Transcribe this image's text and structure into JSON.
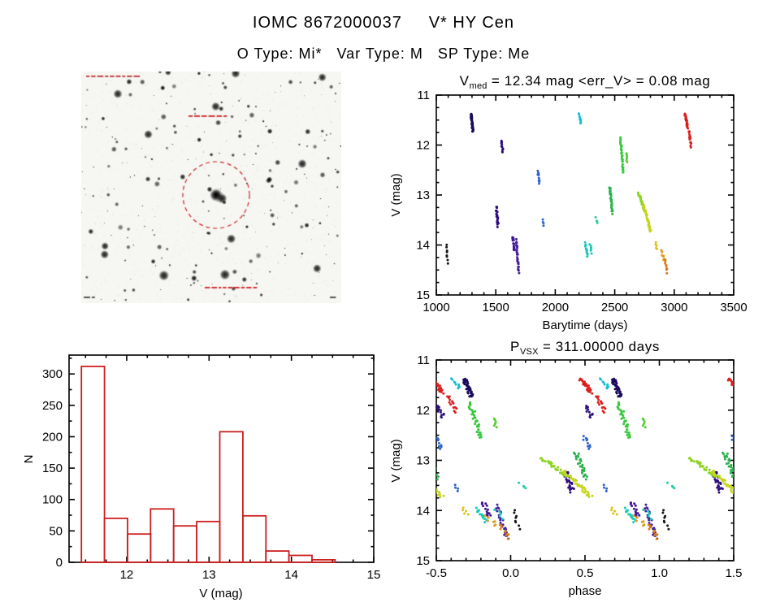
{
  "page": {
    "title": "IOMC 8672000037     V* HY Cen",
    "subtitle": "O Type: Mi*   Var Type: M   SP Type: Me"
  },
  "target": {
    "iomc_id": "8672000037",
    "star_name": "V* HY Cen",
    "otype": "Mi*",
    "var_type": "M",
    "sp_type": "Me",
    "v_med_mag": 12.34,
    "err_v_mag": 0.08,
    "period_days": 311.0
  },
  "finder_chart": {
    "kind": "star-field-image",
    "target_marker": "dashed-circle",
    "target_marker_color": "#cc2222"
  },
  "chart_data": [
    {
      "id": "lightcurve",
      "type": "scatter",
      "title_parts": [
        {
          "t": "V"
        },
        {
          "t": "med",
          "sub": true
        },
        {
          "t": " = 12.34 mag <err_V> = 0.08 mag"
        }
      ],
      "xlabel": "Barytime (days)",
      "ylabel": "V (mag)",
      "xlim": [
        1000,
        3500
      ],
      "ylim": [
        15,
        11
      ],
      "xticks": [
        1000,
        1500,
        2000,
        2500,
        3000,
        3500
      ],
      "xtick_labels": [
        "1000",
        "1500",
        "2000",
        "2500",
        "3000",
        "3500"
      ],
      "yticks": [
        11,
        12,
        13,
        14,
        15
      ],
      "ytick_labels": [
        "11",
        "12",
        "13",
        "14",
        "15"
      ],
      "x_minor": 100,
      "y_minor": 0.25,
      "y_axis_inverted": true,
      "clusters_format": [
        "t_start_days",
        "t_end_days",
        "v_start_mag",
        "v_end_mag",
        "n_points",
        "color"
      ],
      "clusters": [
        [
          1085,
          1095,
          14.02,
          14.35,
          8,
          "#151515"
        ],
        [
          1293,
          1307,
          11.38,
          11.72,
          42,
          "#1b0b5e"
        ],
        [
          1505,
          1518,
          13.25,
          13.62,
          26,
          "#2e0d80"
        ],
        [
          1548,
          1560,
          11.92,
          12.15,
          12,
          "#2e0d80"
        ],
        [
          1642,
          1655,
          13.82,
          14.12,
          14,
          "#3f1699"
        ],
        [
          1672,
          1692,
          13.9,
          14.55,
          30,
          "#45219e"
        ],
        [
          1852,
          1868,
          12.5,
          12.78,
          10,
          "#2f64cc"
        ],
        [
          1893,
          1905,
          13.5,
          13.62,
          4,
          "#2f64cc"
        ],
        [
          2203,
          2215,
          11.38,
          11.56,
          10,
          "#17bfd4"
        ],
        [
          2252,
          2270,
          13.96,
          14.22,
          14,
          "#16c9b8"
        ],
        [
          2293,
          2306,
          14.0,
          14.16,
          6,
          "#16c9b8"
        ],
        [
          2344,
          2356,
          13.46,
          13.58,
          4,
          "#1ecfa0"
        ],
        [
          2460,
          2480,
          12.86,
          13.36,
          30,
          "#2cb24e"
        ],
        [
          2548,
          2572,
          11.85,
          12.55,
          36,
          "#35c93b"
        ],
        [
          2594,
          2606,
          12.18,
          12.36,
          6,
          "#52cf2c"
        ],
        [
          2698,
          2752,
          12.95,
          13.32,
          34,
          "#8fd323"
        ],
        [
          2744,
          2802,
          13.22,
          13.72,
          40,
          "#c6d51c"
        ],
        [
          2843,
          2856,
          13.94,
          14.08,
          5,
          "#ddc219"
        ],
        [
          2893,
          2912,
          14.1,
          14.3,
          8,
          "#e09a1b"
        ],
        [
          2922,
          2940,
          14.28,
          14.55,
          10,
          "#db7b17"
        ],
        [
          3092,
          3112,
          11.38,
          11.64,
          26,
          "#da1f1f"
        ],
        [
          3122,
          3142,
          11.72,
          12.02,
          14,
          "#da1f1f"
        ]
      ]
    },
    {
      "id": "histogram",
      "type": "bar",
      "xlabel": "V (mag)",
      "ylabel": "N",
      "xlim": [
        11.3,
        15.0
      ],
      "ylim": [
        0,
        330
      ],
      "xticks": [
        12,
        13,
        14,
        15
      ],
      "xtick_labels": [
        "12",
        "13",
        "14",
        "15"
      ],
      "yticks": [
        0,
        50,
        100,
        150,
        200,
        250,
        300
      ],
      "ytick_labels": [
        "0",
        "50",
        "100",
        "150",
        "200",
        "250",
        "300"
      ],
      "x_minor": 0.25,
      "y_minor": 25,
      "bin_start": 11.45,
      "bin_width": 0.28,
      "counts": [
        312,
        70,
        45,
        85,
        58,
        65,
        208,
        74,
        18,
        11,
        4
      ],
      "color": "#cc2020"
    },
    {
      "id": "phase_curve",
      "type": "scatter",
      "title_parts": [
        {
          "t": "P"
        },
        {
          "t": "VSX",
          "sub": true
        },
        {
          "t": " = 311.00000 days"
        }
      ],
      "xlabel": "phase",
      "ylabel": "V (mag)",
      "xlim": [
        -0.5,
        1.5
      ],
      "ylim": [
        15,
        11
      ],
      "xticks": [
        -0.5,
        0,
        0.5,
        1,
        1.5
      ],
      "xtick_labels": [
        "-0.5",
        "0.0",
        "0.5",
        "1.0",
        "1.5"
      ],
      "yticks": [
        11,
        12,
        13,
        14,
        15
      ],
      "ytick_labels": [
        "11",
        "12",
        "13",
        "14",
        "15"
      ],
      "x_minor": 0.1,
      "y_minor": 0.25,
      "y_axis_inverted": true,
      "period_days": 311.0,
      "folds_series": "lightcurve"
    }
  ]
}
